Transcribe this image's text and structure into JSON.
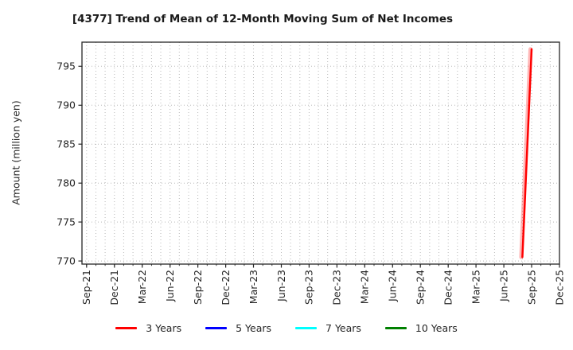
{
  "figure": {
    "title": "[4377]  Trend of Mean of 12-Month Moving Sum of Net Incomes"
  },
  "chart_data": {
    "type": "line",
    "title": "[4377]  Trend of Mean of 12-Month Moving Sum of Net Incomes",
    "xlabel": "",
    "ylabel": "Amount (million yen)",
    "x_tick_labels": [
      "Sep-21",
      "Dec-21",
      "Mar-22",
      "Jun-22",
      "Sep-22",
      "Dec-22",
      "Mar-23",
      "Jun-23",
      "Sep-23",
      "Dec-23",
      "Mar-24",
      "Jun-24",
      "Sep-24",
      "Dec-24",
      "Mar-25",
      "Jun-25",
      "Sep-25",
      "Dec-25"
    ],
    "x_tick_step_months": 3,
    "total_months": 51,
    "xlim_months": [
      -0.5,
      51
    ],
    "y_ticks": [
      770,
      775,
      780,
      785,
      790,
      795
    ],
    "ylim": [
      769.6,
      798.1
    ],
    "grid": true,
    "grid_style": "dotted",
    "grid_color": "#b8b8b8",
    "axis_color": "#262626",
    "legend_position": "bottom-center",
    "series": [
      {
        "name": "3 Years",
        "color": "#ff0000",
        "points": [
          {
            "month": "Aug-25",
            "m": 47,
            "value": 770.5
          },
          {
            "month": "Sep-25",
            "m": 48,
            "value": 797.2
          }
        ]
      },
      {
        "name": "5 Years",
        "color": "#0000ff",
        "points": []
      },
      {
        "name": "7 Years",
        "color": "#00ffff",
        "points": []
      },
      {
        "name": "10 Years",
        "color": "#008000",
        "points": []
      }
    ]
  }
}
